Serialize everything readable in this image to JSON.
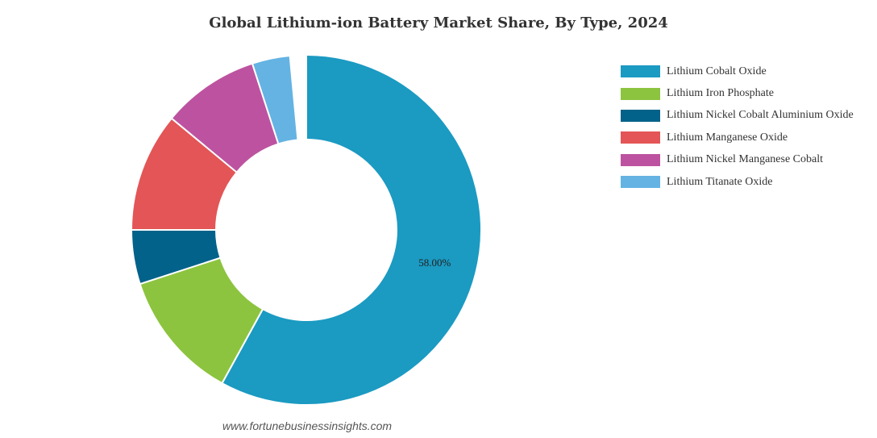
{
  "chart_data": {
    "type": "pie",
    "title": "Global Lithium-ion Battery Market Share, By Type, 2024",
    "categories": [
      "Lithium Cobalt Oxide",
      "Lithium Iron Phosphate",
      "Lithium Nickel Cobalt Aluminium Oxide",
      "Lithium Manganese Oxide",
      "Lithium Nickel Manganese Cobalt",
      "Lithium Titanate Oxide"
    ],
    "values": [
      58.0,
      12.0,
      5.0,
      11.0,
      9.0,
      3.5
    ],
    "colors": [
      "#1b9ac2",
      "#8cc43f",
      "#03628a",
      "#e35556",
      "#bd53a0",
      "#64b3e3"
    ],
    "data_labels": [
      "58.00%",
      "",
      "",
      "",
      "",
      ""
    ],
    "legend_position": "right",
    "donut": true,
    "gap_at_top": true
  },
  "source": "www.fortunebusinessinsights.com"
}
